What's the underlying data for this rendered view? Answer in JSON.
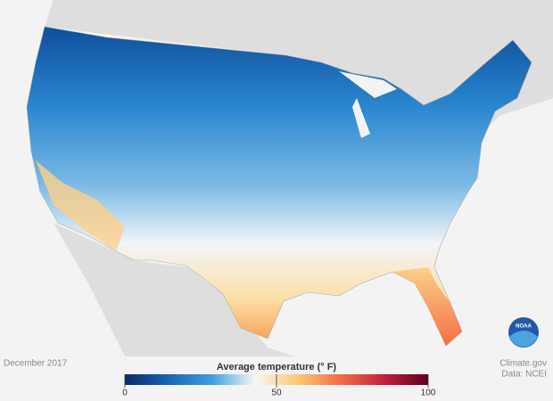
{
  "date": "December 2017",
  "legend": {
    "title": "Average temperature (° F)",
    "range": [
      0,
      100
    ],
    "ticks": [
      0,
      50,
      100
    ],
    "colors": [
      "#0b2a6b",
      "#1a64b4",
      "#3aa0dc",
      "#f7f7f7",
      "#fdc873",
      "#f26b43",
      "#c0203c",
      "#5e0020"
    ]
  },
  "logo": "NOAA",
  "credits": [
    "Climate.gov",
    "Data: NCEI"
  ]
}
